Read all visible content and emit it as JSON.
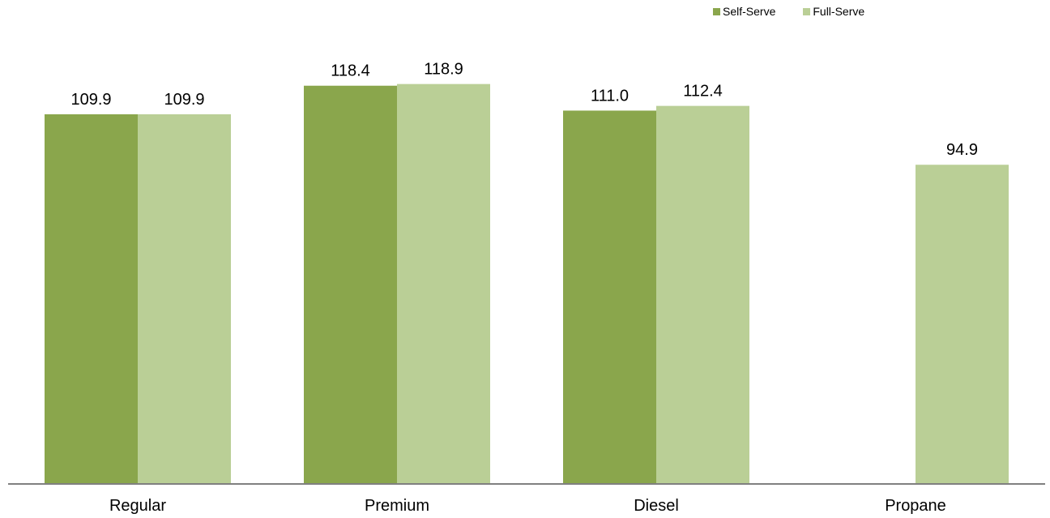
{
  "legend": {
    "self_label": "Self-Serve",
    "full_label": "Full-Serve"
  },
  "colors": {
    "self": "#8aa64c",
    "full": "#bacf96",
    "axis": "#808080"
  },
  "chart_data": {
    "type": "bar",
    "title": "",
    "xlabel": "",
    "ylabel": "",
    "categories": [
      "Regular",
      "Premium",
      "Diesel",
      "Propane"
    ],
    "series": [
      {
        "name": "Self-Serve",
        "values": [
          109.9,
          118.4,
          111.0,
          null
        ],
        "labels": [
          "109.9",
          "118.4",
          "111.0",
          ""
        ]
      },
      {
        "name": "Full-Serve",
        "values": [
          109.9,
          118.9,
          112.4,
          94.9
        ],
        "labels": [
          "109.9",
          "118.9",
          "112.4",
          "94.9"
        ]
      }
    ],
    "ylim": [
      0,
      125
    ],
    "grid": false,
    "legend_position": "top-right"
  }
}
